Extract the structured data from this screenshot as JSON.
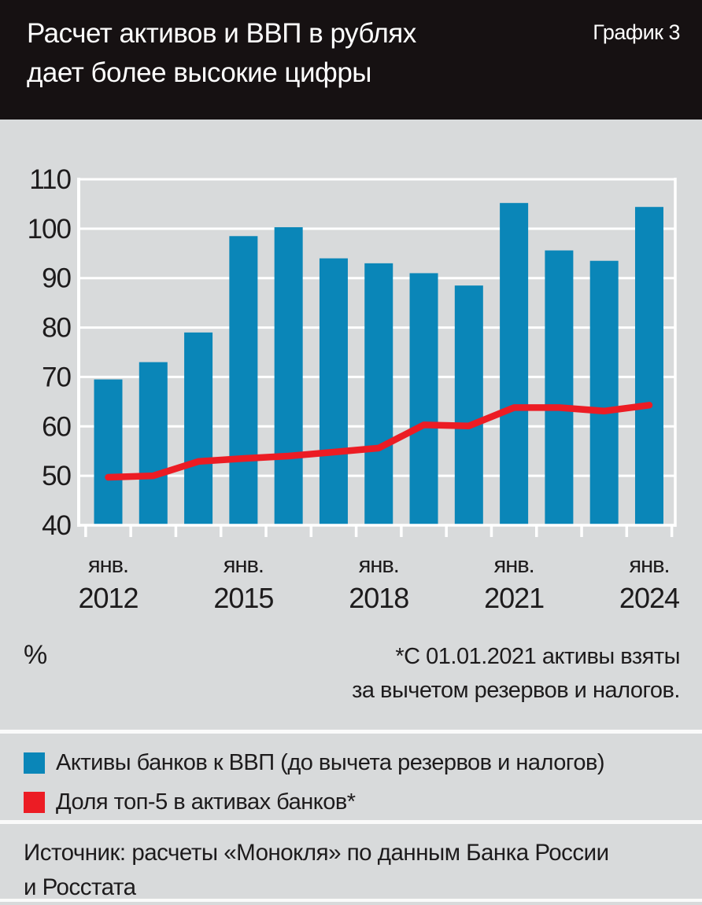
{
  "header": {
    "title_lines": [
      "Расчет активов и ВВП в рублях",
      "дает более высокие цифры"
    ],
    "tag": "График 3"
  },
  "chart_data": {
    "type": "bar",
    "categories": [
      "2012",
      "2013",
      "2014",
      "2015",
      "2016",
      "2017",
      "2018",
      "2019",
      "2020",
      "2021",
      "2022",
      "2023",
      "2024"
    ],
    "x_tick_prefix": "янв.",
    "x_labeled": [
      {
        "index": 0,
        "month": "янв.",
        "year": "2012"
      },
      {
        "index": 3,
        "month": "янв.",
        "year": "2015"
      },
      {
        "index": 6,
        "month": "янв.",
        "year": "2018"
      },
      {
        "index": 9,
        "month": "янв.",
        "year": "2021"
      },
      {
        "index": 12,
        "month": "янв.",
        "year": "2024"
      }
    ],
    "series": [
      {
        "name": "Активы банков к ВВП (до вычета резервов и налогов)",
        "type": "bar",
        "color": "#0a86b8",
        "values": [
          69.5,
          73.0,
          79.0,
          98.5,
          100.3,
          94.0,
          93.0,
          91.0,
          88.5,
          105.2,
          95.6,
          93.5,
          104.4
        ]
      },
      {
        "name": "Доля топ-5 в активах банков*",
        "type": "line",
        "color": "#ec1c24",
        "values": [
          49.7,
          50.0,
          52.9,
          53.5,
          54.0,
          54.8,
          55.6,
          60.3,
          60.1,
          63.8,
          63.8,
          63.1,
          64.3
        ]
      }
    ],
    "ylabel": "%",
    "ylim": [
      40,
      110
    ],
    "yticks": [
      110,
      100,
      90,
      80,
      70,
      60,
      50,
      40
    ],
    "grid": true,
    "gridline_color": "#ffffff",
    "legend_position": "bottom"
  },
  "footnote": {
    "lines": [
      "*С 01.01.2021 активы взяты",
      "за вычетом резервов и налогов."
    ]
  },
  "source": {
    "lines": [
      "Источник: расчеты «Монокля» по данным Банка России",
      "и Росстата"
    ]
  }
}
